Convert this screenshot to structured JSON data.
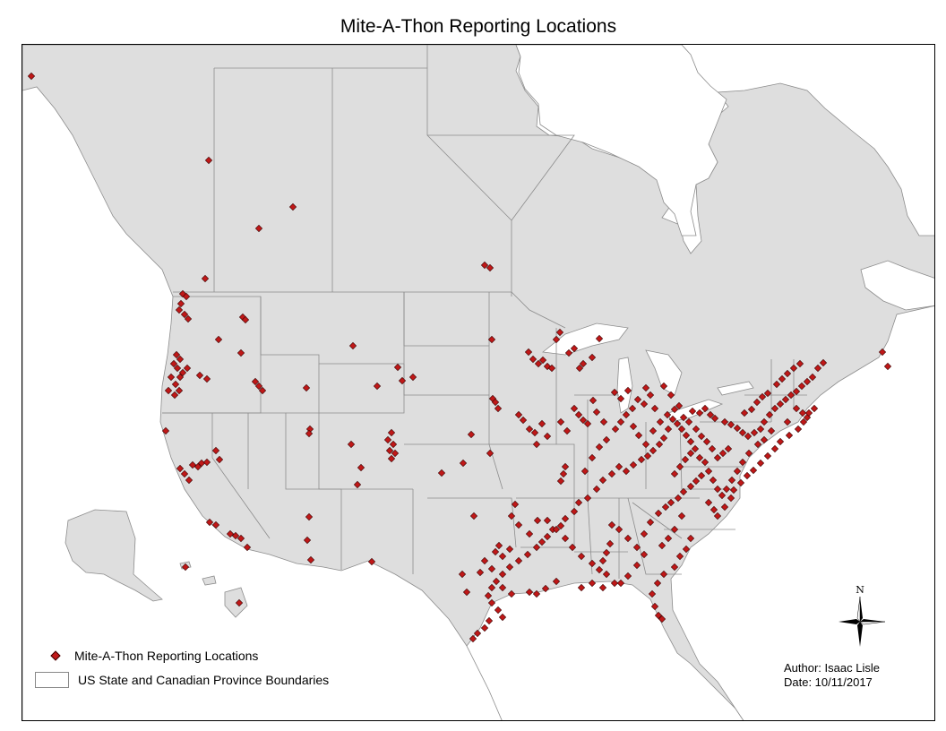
{
  "title": "Mite-A-Thon Reporting Locations",
  "legend": {
    "points_label": "Mite-A-Thon Reporting Locations",
    "boundaries_label": "US State and Canadian Province Boundaries"
  },
  "credits": {
    "author": "Author:  Isaac Lisle",
    "date": "Date: 10/11/2017"
  },
  "north_arrow": {
    "label": "N"
  },
  "colors": {
    "land": "#dedede",
    "water": "#ffffff",
    "boundary": "#8c8c8c",
    "point_fill": "#c01818",
    "point_stroke": "#3a0000"
  }
}
